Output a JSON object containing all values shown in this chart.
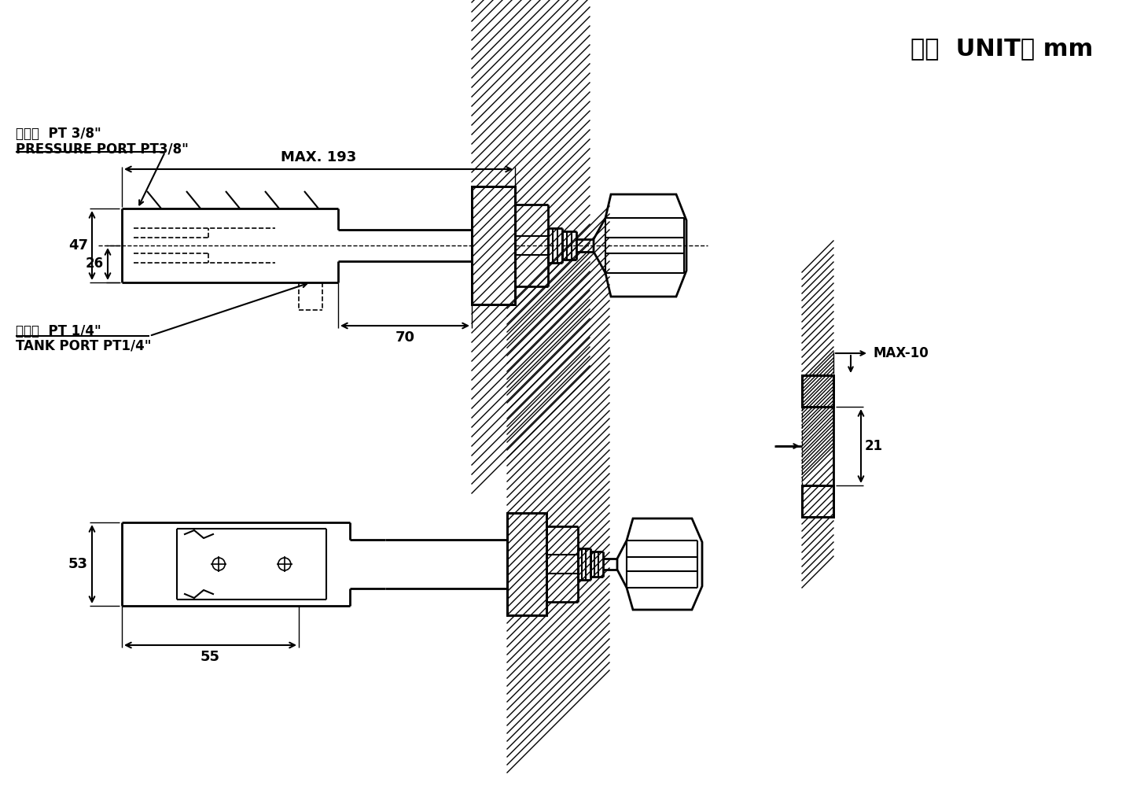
{
  "bg_color": "#ffffff",
  "line_color": "#000000",
  "title_text": "単位  UNIT： mm",
  "label_pressure_jp": "圧力孔  PT 3/8\"",
  "label_pressure_en": "PRESSURE PORT PT3/8\"",
  "label_tank_jp": "回油孔  PT 1/4\"",
  "label_tank_en": "TANK PORT PT1/4\"",
  "dim_max193": "MAX. 193",
  "dim_70": "70",
  "dim_47": "47",
  "dim_26": "26",
  "dim_53": "53",
  "dim_55": "55",
  "dim_max10": "MAX-10",
  "dim_21": "21"
}
